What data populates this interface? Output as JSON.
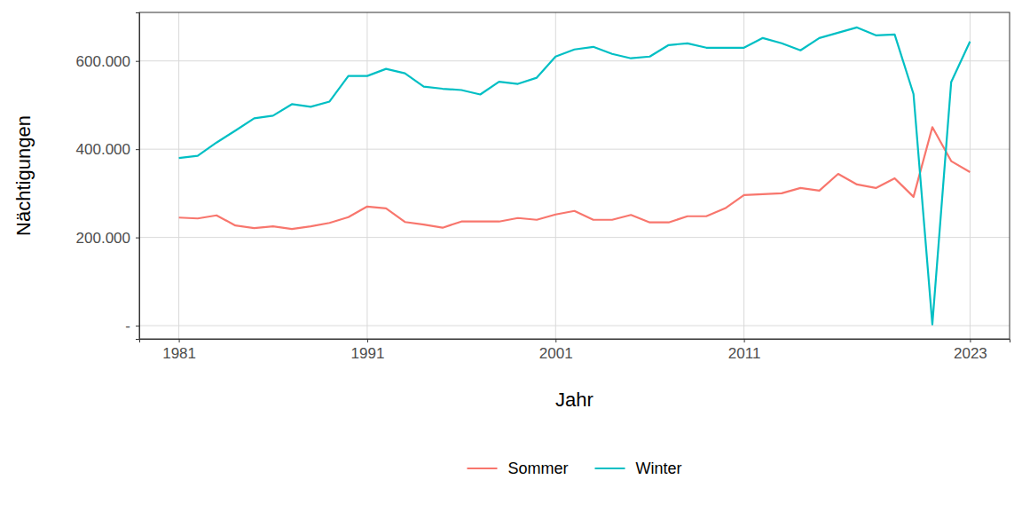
{
  "chart_data": {
    "type": "line",
    "x_label": "Jahr",
    "y_label": "Nächtigungen",
    "x": [
      1981,
      1982,
      1983,
      1984,
      1985,
      1986,
      1987,
      1988,
      1989,
      1990,
      1991,
      1992,
      1993,
      1994,
      1995,
      1996,
      1997,
      1998,
      1999,
      2000,
      2001,
      2002,
      2003,
      2004,
      2005,
      2006,
      2007,
      2008,
      2009,
      2010,
      2011,
      2012,
      2013,
      2014,
      2015,
      2016,
      2017,
      2018,
      2019,
      2020,
      2021,
      2022,
      2023
    ],
    "series": [
      {
        "name": "Sommer",
        "color": "#F8766D",
        "values": [
          245000,
          243000,
          250000,
          227000,
          221000,
          225000,
          219000,
          225000,
          233000,
          246000,
          270000,
          266000,
          235000,
          229000,
          222000,
          236000,
          236000,
          236000,
          244000,
          240000,
          252000,
          260000,
          240000,
          240000,
          251000,
          234000,
          234000,
          248000,
          248000,
          266000,
          296000,
          298000,
          300000,
          312000,
          306000,
          344000,
          320000,
          312000,
          334000,
          292000,
          450000,
          373000,
          348000
        ]
      },
      {
        "name": "Winter",
        "color": "#00BFC4",
        "values": [
          380000,
          385000,
          415000,
          442000,
          470000,
          476000,
          502000,
          496000,
          508000,
          566000,
          566000,
          582000,
          572000,
          542000,
          537000,
          534000,
          524000,
          553000,
          548000,
          562000,
          610000,
          626000,
          632000,
          616000,
          606000,
          610000,
          636000,
          640000,
          630000,
          630000,
          630000,
          652000,
          640000,
          624000,
          652000,
          664000,
          676000,
          658000,
          660000,
          525000,
          3000,
          552000,
          644000
        ]
      }
    ],
    "xlim": [
      1978.9,
      2025.1
    ],
    "ylim": [
      -30000,
      710000
    ],
    "xticks": [
      1981,
      1991,
      2001,
      2011,
      2023
    ],
    "yticks": [
      {
        "value": 0,
        "label": "-"
      },
      {
        "value": 200000,
        "label": "200.000"
      },
      {
        "value": 400000,
        "label": "400.000"
      },
      {
        "value": 600000,
        "label": "600.000"
      }
    ],
    "grid": true,
    "legend": "bottom"
  }
}
